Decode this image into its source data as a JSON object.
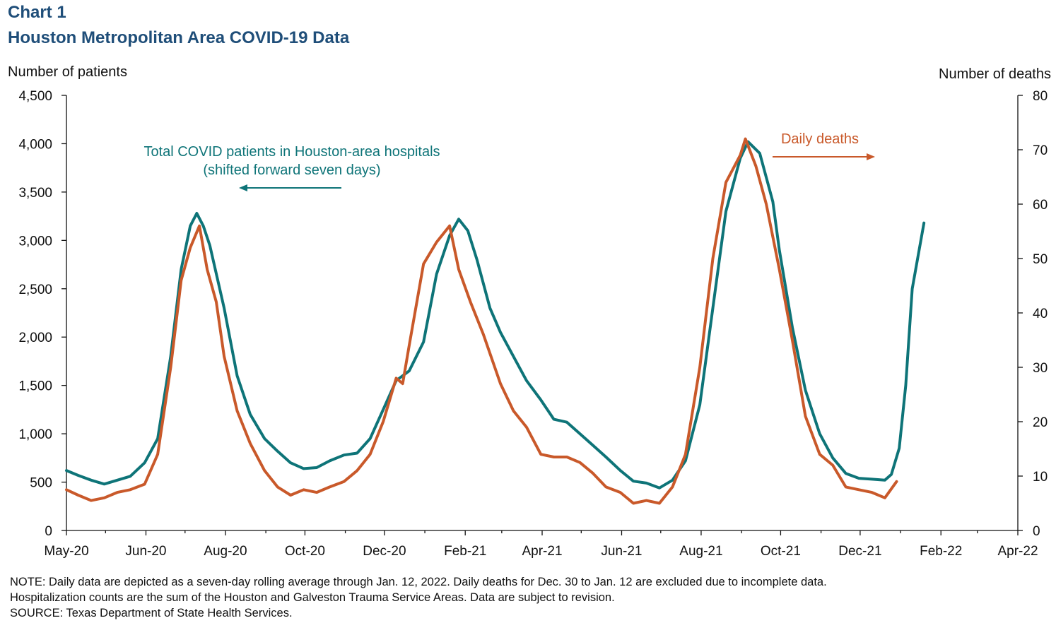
{
  "header": {
    "label": "Chart 1",
    "title": "Houston Metropolitan Area COVID-19 Data"
  },
  "notes": {
    "line1": "NOTE: Daily data are depicted as a seven-day rolling average through Jan. 12, 2022. Daily deaths for Dec. 30 to Jan. 12 are excluded due to incomplete data.",
    "line2": "Hospitalization counts are the sum of the Houston and Galveston Trauma Service Areas. Data are subject to revision.",
    "line3": "SOURCE: Texas Department of State Health Services."
  },
  "colors": {
    "patients": "#0e7478",
    "deaths": "#c9592a",
    "axis": "#111111"
  },
  "chart_data": {
    "type": "line",
    "y_left_label": "Number of patients",
    "y_right_label": "Number of deaths",
    "y_left_lim": [
      0,
      4500
    ],
    "y_right_lim": [
      0,
      80
    ],
    "y_left_ticks": [
      "0",
      "500",
      "1,000",
      "1,500",
      "2,000",
      "2,500",
      "3,000",
      "3,500",
      "4,000",
      "4,500"
    ],
    "y_right_ticks": [
      "0",
      "10",
      "20",
      "30",
      "40",
      "50",
      "60",
      "70",
      "80"
    ],
    "x_tick_labels": [
      "May-20",
      "Jun-20",
      "Aug-20",
      "Oct-20",
      "Dec-20",
      "Feb-21",
      "Apr-21",
      "Jun-21",
      "Aug-21",
      "Oct-21",
      "Dec-21",
      "Feb-22",
      "Apr-22"
    ],
    "x_months_per_tick": 2,
    "x_start": "2020-04-01",
    "annotations": {
      "patients": [
        "Total COVID patients in Houston-area hospitals",
        "(shifted forward seven days)"
      ],
      "deaths": "Daily deaths"
    },
    "series": [
      {
        "name": "Total COVID patients in Houston-area hospitals (shifted forward seven days)",
        "axis": "left",
        "points": [
          [
            "2020-04-01",
            620
          ],
          [
            "2020-04-10",
            570
          ],
          [
            "2020-04-20",
            520
          ],
          [
            "2020-04-30",
            480
          ],
          [
            "2020-05-10",
            520
          ],
          [
            "2020-05-20",
            560
          ],
          [
            "2020-05-31",
            700
          ],
          [
            "2020-06-10",
            950
          ],
          [
            "2020-06-20",
            1800
          ],
          [
            "2020-06-28",
            2700
          ],
          [
            "2020-07-05",
            3150
          ],
          [
            "2020-07-10",
            3280
          ],
          [
            "2020-07-15",
            3150
          ],
          [
            "2020-07-20",
            2950
          ],
          [
            "2020-07-31",
            2300
          ],
          [
            "2020-08-10",
            1600
          ],
          [
            "2020-08-20",
            1200
          ],
          [
            "2020-08-31",
            950
          ],
          [
            "2020-09-10",
            820
          ],
          [
            "2020-09-20",
            700
          ],
          [
            "2020-09-30",
            640
          ],
          [
            "2020-10-10",
            650
          ],
          [
            "2020-10-20",
            720
          ],
          [
            "2020-10-31",
            780
          ],
          [
            "2020-11-10",
            800
          ],
          [
            "2020-11-20",
            950
          ],
          [
            "2020-11-30",
            1250
          ],
          [
            "2020-12-10",
            1550
          ],
          [
            "2020-12-20",
            1650
          ],
          [
            "2020-12-31",
            1950
          ],
          [
            "2021-01-10",
            2650
          ],
          [
            "2021-01-20",
            3050
          ],
          [
            "2021-01-27",
            3220
          ],
          [
            "2021-02-03",
            3100
          ],
          [
            "2021-02-10",
            2800
          ],
          [
            "2021-02-20",
            2300
          ],
          [
            "2021-02-28",
            2050
          ],
          [
            "2021-03-10",
            1800
          ],
          [
            "2021-03-20",
            1550
          ],
          [
            "2021-03-31",
            1350
          ],
          [
            "2021-04-10",
            1150
          ],
          [
            "2021-04-20",
            1120
          ],
          [
            "2021-04-30",
            1000
          ],
          [
            "2021-05-10",
            880
          ],
          [
            "2021-05-20",
            760
          ],
          [
            "2021-05-31",
            620
          ],
          [
            "2021-06-10",
            510
          ],
          [
            "2021-06-20",
            490
          ],
          [
            "2021-06-30",
            440
          ],
          [
            "2021-07-10",
            520
          ],
          [
            "2021-07-20",
            720
          ],
          [
            "2021-07-31",
            1300
          ],
          [
            "2021-08-10",
            2300
          ],
          [
            "2021-08-20",
            3300
          ],
          [
            "2021-08-31",
            3850
          ],
          [
            "2021-09-06",
            4020
          ],
          [
            "2021-09-15",
            3900
          ],
          [
            "2021-09-25",
            3400
          ],
          [
            "2021-09-30",
            2900
          ],
          [
            "2021-10-10",
            2100
          ],
          [
            "2021-10-20",
            1450
          ],
          [
            "2021-10-31",
            1000
          ],
          [
            "2021-11-10",
            750
          ],
          [
            "2021-11-20",
            590
          ],
          [
            "2021-11-30",
            540
          ],
          [
            "2021-12-10",
            530
          ],
          [
            "2021-12-20",
            520
          ],
          [
            "2021-12-25",
            580
          ],
          [
            "2021-12-31",
            850
          ],
          [
            "2022-01-05",
            1500
          ],
          [
            "2022-01-10",
            2500
          ],
          [
            "2022-01-19",
            3180
          ]
        ]
      },
      {
        "name": "Daily deaths",
        "axis": "right",
        "points": [
          [
            "2020-04-01",
            7.5
          ],
          [
            "2020-04-10",
            6.5
          ],
          [
            "2020-04-20",
            5.5
          ],
          [
            "2020-04-30",
            6.0
          ],
          [
            "2020-05-10",
            7.0
          ],
          [
            "2020-05-20",
            7.5
          ],
          [
            "2020-05-31",
            8.5
          ],
          [
            "2020-06-10",
            14.0
          ],
          [
            "2020-06-20",
            30.0
          ],
          [
            "2020-06-28",
            46.0
          ],
          [
            "2020-07-05",
            52.0
          ],
          [
            "2020-07-12",
            56.0
          ],
          [
            "2020-07-18",
            48.0
          ],
          [
            "2020-07-25",
            42.0
          ],
          [
            "2020-07-31",
            32.0
          ],
          [
            "2020-08-10",
            22.0
          ],
          [
            "2020-08-20",
            16.0
          ],
          [
            "2020-08-31",
            11.0
          ],
          [
            "2020-09-10",
            8.0
          ],
          [
            "2020-09-20",
            6.5
          ],
          [
            "2020-09-30",
            7.5
          ],
          [
            "2020-10-10",
            7.0
          ],
          [
            "2020-10-20",
            8.0
          ],
          [
            "2020-10-31",
            9.0
          ],
          [
            "2020-11-10",
            11.0
          ],
          [
            "2020-11-20",
            14.0
          ],
          [
            "2020-11-30",
            20.0
          ],
          [
            "2020-12-10",
            28.0
          ],
          [
            "2020-12-15",
            27.0
          ],
          [
            "2020-12-20",
            34.0
          ],
          [
            "2020-12-31",
            49.0
          ],
          [
            "2021-01-10",
            53.0
          ],
          [
            "2021-01-20",
            56.0
          ],
          [
            "2021-01-27",
            48.0
          ],
          [
            "2021-02-05",
            42.0
          ],
          [
            "2021-02-15",
            36.0
          ],
          [
            "2021-02-28",
            27.0
          ],
          [
            "2021-03-10",
            22.0
          ],
          [
            "2021-03-20",
            19.0
          ],
          [
            "2021-03-31",
            14.0
          ],
          [
            "2021-04-10",
            13.5
          ],
          [
            "2021-04-20",
            13.5
          ],
          [
            "2021-04-30",
            12.5
          ],
          [
            "2021-05-10",
            10.5
          ],
          [
            "2021-05-20",
            8.0
          ],
          [
            "2021-05-31",
            7.0
          ],
          [
            "2021-06-10",
            5.0
          ],
          [
            "2021-06-20",
            5.5
          ],
          [
            "2021-06-30",
            5.0
          ],
          [
            "2021-07-10",
            8.0
          ],
          [
            "2021-07-20",
            14.0
          ],
          [
            "2021-07-31",
            30.0
          ],
          [
            "2021-08-10",
            50.0
          ],
          [
            "2021-08-20",
            64.0
          ],
          [
            "2021-08-31",
            69.0
          ],
          [
            "2021-09-04",
            72.0
          ],
          [
            "2021-09-12",
            67.0
          ],
          [
            "2021-09-20",
            60.0
          ],
          [
            "2021-09-30",
            48.0
          ],
          [
            "2021-10-10",
            35.0
          ],
          [
            "2021-10-20",
            21.0
          ],
          [
            "2021-10-31",
            14.0
          ],
          [
            "2021-11-10",
            12.0
          ],
          [
            "2021-11-20",
            8.0
          ],
          [
            "2021-11-30",
            7.5
          ],
          [
            "2021-12-10",
            7.0
          ],
          [
            "2021-12-20",
            6.0
          ],
          [
            "2021-12-29",
            9.0
          ]
        ]
      }
    ]
  }
}
